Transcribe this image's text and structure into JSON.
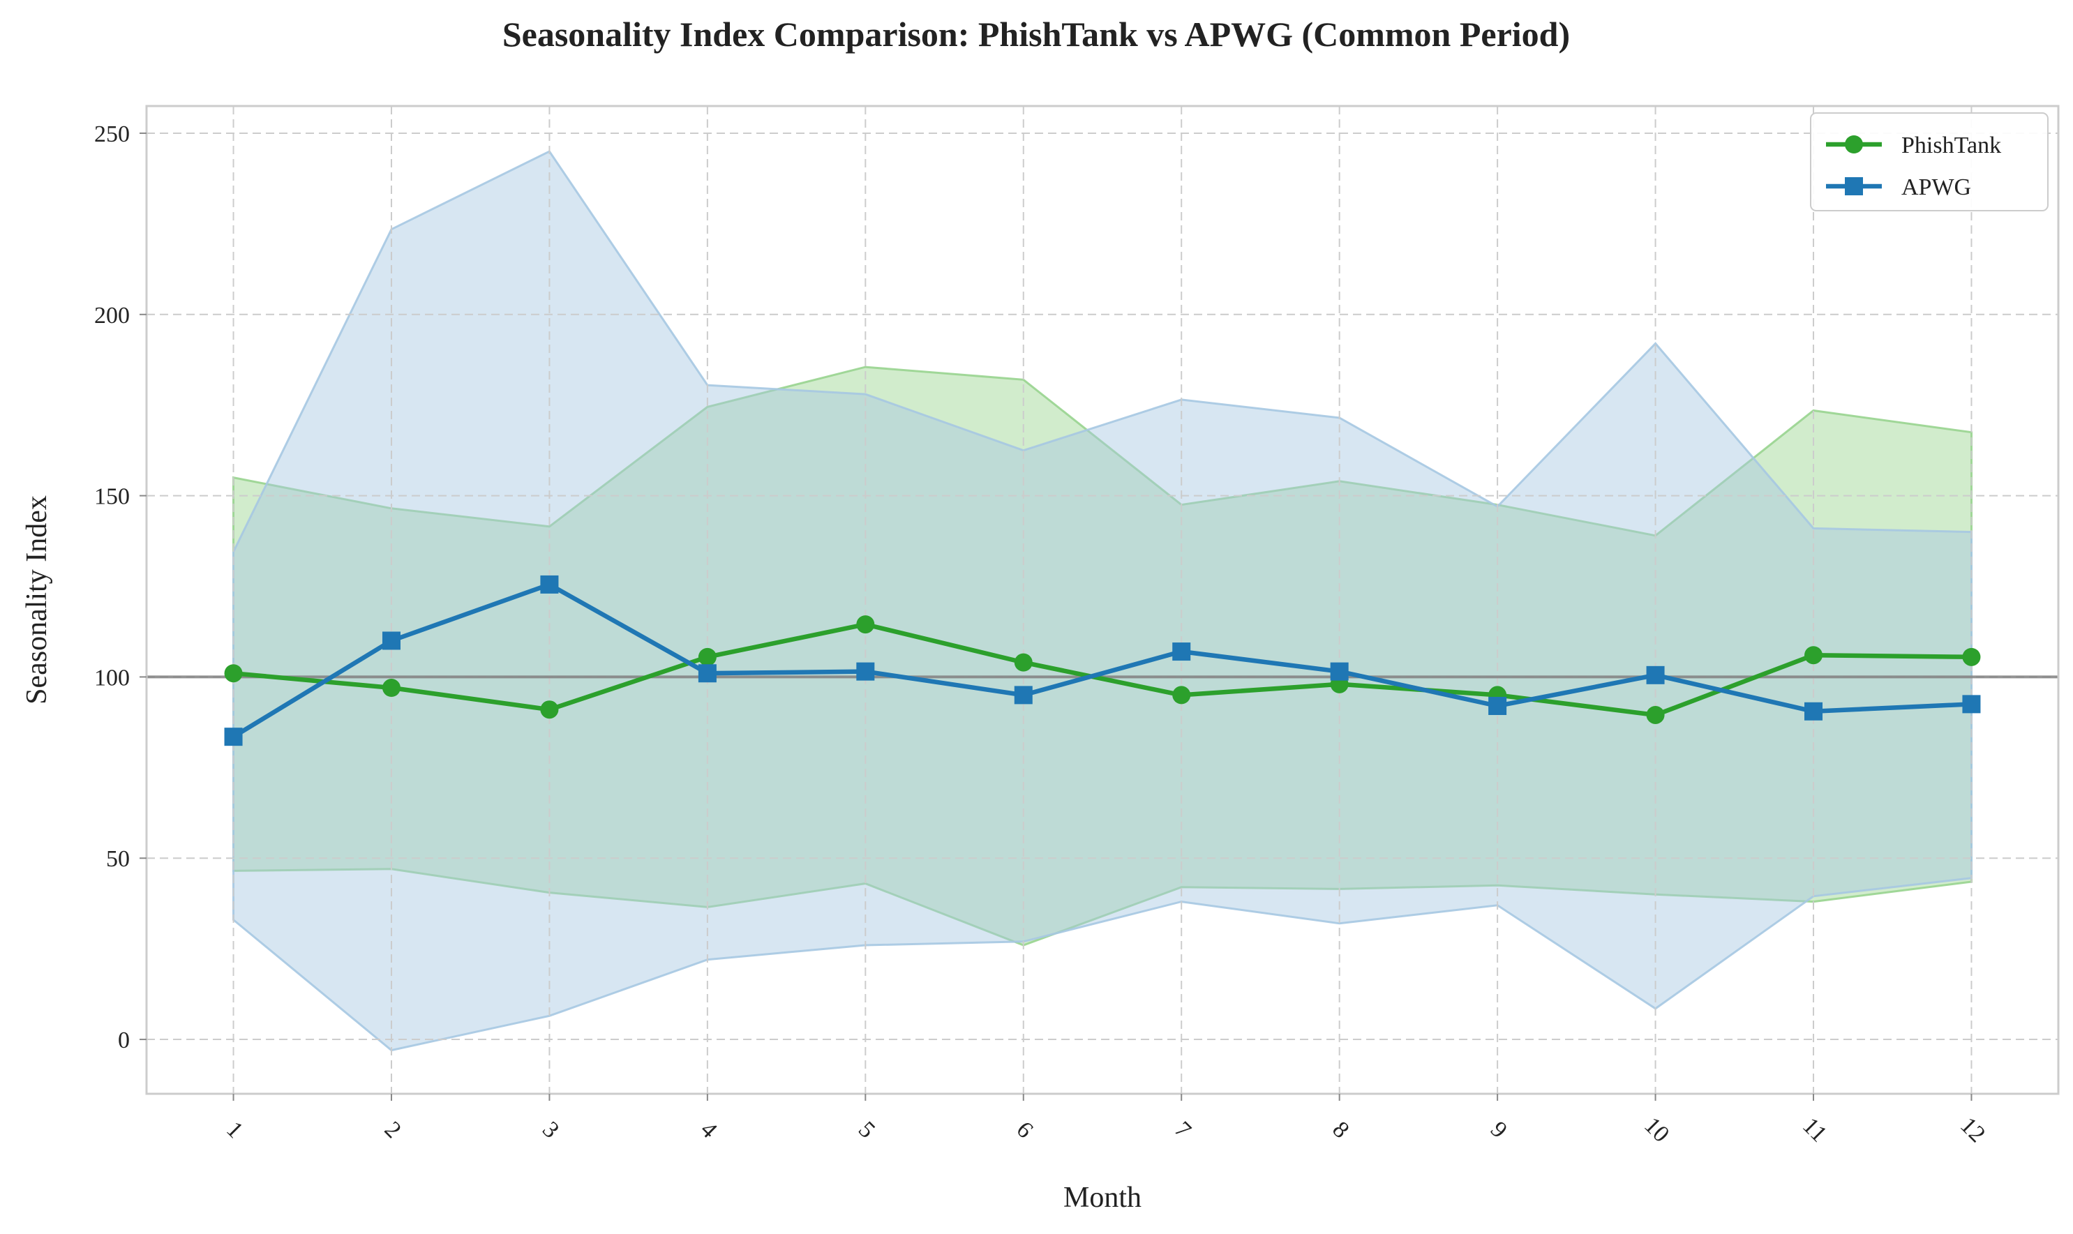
{
  "chart_data": {
    "type": "line",
    "title": "Seasonality Index Comparison: PhishTank vs APWG (Common Period)",
    "xlabel": "Month",
    "ylabel": "Seasonality Index",
    "x": [
      1,
      2,
      3,
      4,
      5,
      6,
      7,
      8,
      9,
      10,
      11,
      12
    ],
    "x_tick_labels": [
      "1",
      "2",
      "3",
      "4",
      "5",
      "6",
      "7",
      "8",
      "9",
      "10",
      "11",
      "12"
    ],
    "xlim": [
      0.45,
      12.55
    ],
    "ylim": [
      -15,
      257.5
    ],
    "y_ticks": [
      0,
      50,
      100,
      150,
      200,
      250
    ],
    "y_tick_labels": [
      "0",
      "50",
      "100",
      "150",
      "200",
      "250"
    ],
    "reference_line": 100,
    "grid": true,
    "legend_position": "top-right",
    "series": [
      {
        "name": "PhishTank",
        "color": "#2ca02c",
        "marker": "circle",
        "values": [
          101,
          97,
          91,
          105.5,
          114.5,
          104,
          95,
          98,
          95,
          89.5,
          106,
          105.5
        ],
        "band_upper": [
          155,
          146.5,
          141.5,
          174.5,
          185.5,
          182,
          147.5,
          154,
          147.5,
          139,
          173.5,
          167.5
        ],
        "band_lower": [
          46.5,
          47,
          40.5,
          36.5,
          43,
          26,
          42,
          41.5,
          42.5,
          40,
          38,
          43.5
        ]
      },
      {
        "name": "APWG",
        "color": "#1f77b4",
        "marker": "square",
        "values": [
          83.5,
          110,
          125.5,
          101,
          101.5,
          95,
          107,
          101.5,
          92,
          100.5,
          90.5,
          92.5
        ],
        "band_upper": [
          134.5,
          223.5,
          245,
          180.5,
          178,
          162.5,
          176.5,
          171.5,
          147,
          192,
          141,
          140
        ],
        "band_lower": [
          33,
          -3,
          6.5,
          22,
          26,
          27,
          38,
          32,
          37,
          8.5,
          39.5,
          44.5
        ]
      }
    ]
  }
}
